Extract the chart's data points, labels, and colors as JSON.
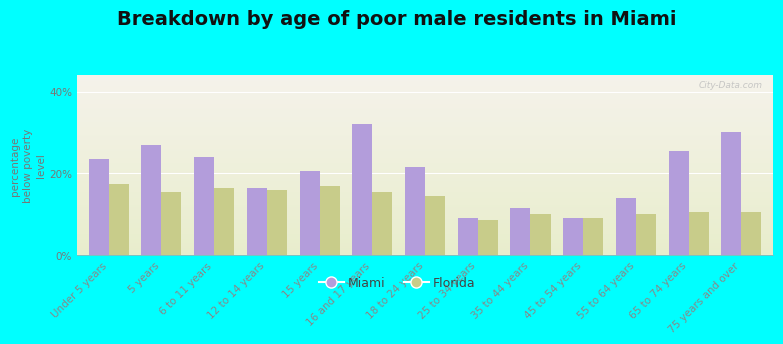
{
  "title": "Breakdown by age of poor male residents in Miami",
  "ylabel": "percentage\nbelow poverty\nlevel",
  "background_color": "#00FFFF",
  "miami_color": "#b39ddb",
  "florida_color": "#c8cc8a",
  "categories": [
    "Under 5 years",
    "5 years",
    "6 to 11 years",
    "12 to 14 years",
    "15 years",
    "16 and 17 years",
    "18 to 24 years",
    "25 to 34 years",
    "35 to 44 years",
    "45 to 54 years",
    "55 to 64 years",
    "65 to 74 years",
    "75 years and over"
  ],
  "miami_values": [
    23.5,
    27.0,
    24.0,
    16.5,
    20.5,
    32.0,
    21.5,
    9.0,
    11.5,
    9.0,
    14.0,
    25.5,
    30.0
  ],
  "florida_values": [
    17.5,
    15.5,
    16.5,
    16.0,
    17.0,
    15.5,
    14.5,
    8.5,
    10.0,
    9.0,
    10.0,
    10.5,
    10.5
  ],
  "ylim": [
    0,
    44
  ],
  "yticks": [
    0,
    20,
    40
  ],
  "ytick_labels": [
    "0%",
    "20%",
    "40%"
  ],
  "title_fontsize": 14,
  "axis_label_fontsize": 7.5,
  "tick_fontsize": 7.5,
  "legend_miami": "Miami",
  "legend_florida": "Florida",
  "watermark": "City-Data.com",
  "ylabel_color": "#777777",
  "ytick_color": "#777777",
  "xtick_color": "#888888"
}
